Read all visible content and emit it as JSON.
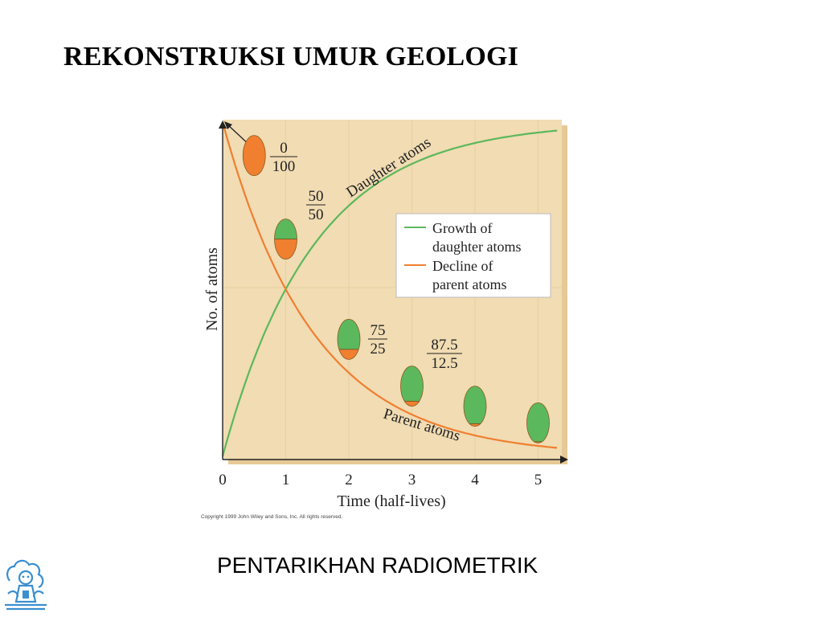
{
  "slide": {
    "title": "REKONSTRUKSI UMUR GEOLOGI",
    "caption": "PENTARIKHAN RADIOMETRIK"
  },
  "chart_data": {
    "type": "line",
    "xlabel": "Time (half-lives)",
    "ylabel": "No. of atoms",
    "x_ticks": [
      "0",
      "1",
      "2",
      "3",
      "4",
      "5"
    ],
    "xlim": [
      0,
      5.5
    ],
    "ylim": [
      0,
      100
    ],
    "series": [
      {
        "name": "Growth of daughter atoms",
        "color": "#5cb85c",
        "curve_label": "Daughter atoms",
        "x": [
          0,
          0.25,
          0.5,
          0.75,
          1,
          1.5,
          2,
          2.5,
          3,
          3.5,
          4,
          4.5,
          5,
          5.3
        ],
        "y": [
          0,
          15.9,
          29.3,
          40.5,
          50,
          64.6,
          75,
          82.3,
          87.5,
          91.2,
          93.75,
          95.6,
          96.9,
          97.5
        ]
      },
      {
        "name": "Decline of parent atoms",
        "color": "#f07f30",
        "curve_label": "Parent atoms",
        "x": [
          0,
          0.25,
          0.5,
          0.75,
          1,
          1.5,
          2,
          2.5,
          3,
          3.5,
          4,
          4.5,
          5,
          5.3
        ],
        "y": [
          100,
          84.1,
          70.7,
          59.5,
          50,
          35.4,
          25,
          17.7,
          12.5,
          8.8,
          6.25,
          4.4,
          3.1,
          2.5
        ]
      }
    ],
    "legend": {
      "position": "right",
      "entries": [
        {
          "lines": [
            "Growth of",
            "daughter atoms"
          ],
          "color": "#5cb85c"
        },
        {
          "lines": [
            "Decline of",
            "parent atoms"
          ],
          "color": "#f07f30"
        }
      ]
    },
    "markers": [
      {
        "x": 0.5,
        "y": 90,
        "daughter_pct": 0,
        "parent_pct": 100,
        "label_top": "0",
        "label_bottom": "100"
      },
      {
        "x": 1,
        "y": 65,
        "daughter_pct": 50,
        "parent_pct": 50,
        "label_top": "50",
        "label_bottom": "50"
      },
      {
        "x": 2,
        "y": 35,
        "daughter_pct": 75,
        "parent_pct": 25,
        "label_top": "75",
        "label_bottom": "25"
      },
      {
        "x": 3,
        "y": 21,
        "daughter_pct": 87.5,
        "parent_pct": 12.5,
        "label_top": "87.5",
        "label_bottom": "12.5"
      },
      {
        "x": 4,
        "y": 15,
        "daughter_pct": 93.75,
        "parent_pct": 6.25
      },
      {
        "x": 5,
        "y": 10,
        "daughter_pct": 96.9,
        "parent_pct": 3.1
      }
    ],
    "copyright": "Copyright 1999 John Wiley and Sons, Inc. All rights reserved.",
    "colors": {
      "background": "#f1dcb3",
      "shadow": "#e6c995",
      "gridline": "#e8cf9f",
      "daughter": "#5cb85c",
      "parent": "#f07f30",
      "axis": "#222222"
    }
  },
  "logo": {
    "icon": "institution-seal-icon"
  }
}
